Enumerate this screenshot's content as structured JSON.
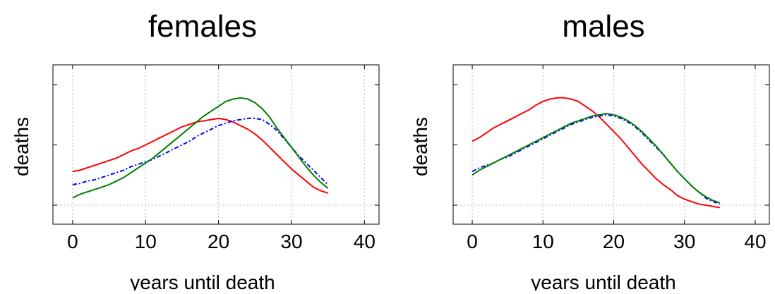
{
  "chart_data": [
    {
      "type": "line",
      "title": "females",
      "xlabel": "years until death",
      "ylabel": "deaths",
      "xlim": [
        -2.7,
        42
      ],
      "ylim": [
        0,
        1
      ],
      "x_ticks": [
        "0",
        "10",
        "20",
        "30",
        "40"
      ],
      "grid": true,
      "series": [
        {
          "color": "#ff0000",
          "style": "solid",
          "x": [
            0,
            1,
            2,
            3,
            4,
            5,
            6,
            7,
            8,
            9,
            10,
            11,
            12,
            13,
            14,
            15,
            16,
            17,
            18,
            19,
            20,
            21,
            22,
            23,
            24,
            25,
            26,
            27,
            28,
            29,
            30,
            31,
            32,
            33,
            34,
            35
          ],
          "values": [
            0.28,
            0.29,
            0.31,
            0.33,
            0.35,
            0.37,
            0.39,
            0.42,
            0.45,
            0.47,
            0.5,
            0.53,
            0.56,
            0.59,
            0.62,
            0.65,
            0.67,
            0.69,
            0.7,
            0.71,
            0.72,
            0.71,
            0.69,
            0.66,
            0.63,
            0.59,
            0.54,
            0.48,
            0.42,
            0.36,
            0.3,
            0.25,
            0.2,
            0.15,
            0.12,
            0.1
          ]
        },
        {
          "color": "#0000ff",
          "style": "dashed",
          "x": [
            0,
            1,
            2,
            3,
            4,
            5,
            6,
            7,
            8,
            9,
            10,
            11,
            12,
            13,
            14,
            15,
            16,
            17,
            18,
            19,
            20,
            21,
            22,
            23,
            24,
            25,
            26,
            27,
            28,
            29,
            30,
            31,
            32,
            33,
            34,
            35
          ],
          "values": [
            0.17,
            0.18,
            0.2,
            0.21,
            0.23,
            0.25,
            0.27,
            0.29,
            0.32,
            0.34,
            0.36,
            0.38,
            0.41,
            0.44,
            0.47,
            0.5,
            0.53,
            0.57,
            0.6,
            0.63,
            0.66,
            0.68,
            0.7,
            0.71,
            0.72,
            0.72,
            0.71,
            0.67,
            0.62,
            0.55,
            0.48,
            0.41,
            0.35,
            0.29,
            0.23,
            0.17
          ]
        },
        {
          "color": "#008000",
          "style": "solid",
          "x": [
            0,
            1,
            2,
            3,
            4,
            5,
            6,
            7,
            8,
            9,
            10,
            11,
            12,
            13,
            14,
            15,
            16,
            17,
            18,
            19,
            20,
            21,
            22,
            23,
            24,
            25,
            26,
            27,
            28,
            29,
            30,
            31,
            32,
            33,
            34,
            35
          ],
          "values": [
            0.06,
            0.09,
            0.11,
            0.13,
            0.15,
            0.17,
            0.2,
            0.23,
            0.27,
            0.31,
            0.35,
            0.39,
            0.44,
            0.49,
            0.54,
            0.59,
            0.64,
            0.69,
            0.74,
            0.78,
            0.82,
            0.86,
            0.88,
            0.89,
            0.88,
            0.85,
            0.8,
            0.73,
            0.64,
            0.56,
            0.48,
            0.4,
            0.32,
            0.25,
            0.19,
            0.14
          ]
        }
      ]
    },
    {
      "type": "line",
      "title": "males",
      "xlabel": "years until death",
      "ylabel": "deaths",
      "xlim": [
        -2.7,
        42
      ],
      "ylim": [
        0,
        1
      ],
      "x_ticks": [
        "0",
        "10",
        "20",
        "30",
        "40"
      ],
      "grid": true,
      "series": [
        {
          "color": "#ff0000",
          "style": "solid",
          "x": [
            0,
            1,
            2,
            3,
            4,
            5,
            6,
            7,
            8,
            9,
            10,
            11,
            12,
            13,
            14,
            15,
            16,
            17,
            18,
            19,
            20,
            21,
            22,
            23,
            24,
            25,
            26,
            27,
            28,
            29,
            30,
            31,
            32,
            33,
            34,
            35
          ],
          "values": [
            0.53,
            0.56,
            0.6,
            0.64,
            0.67,
            0.7,
            0.73,
            0.76,
            0.79,
            0.83,
            0.86,
            0.88,
            0.89,
            0.89,
            0.88,
            0.86,
            0.82,
            0.78,
            0.73,
            0.67,
            0.61,
            0.55,
            0.48,
            0.41,
            0.34,
            0.28,
            0.22,
            0.17,
            0.13,
            0.08,
            0.05,
            0.03,
            0.01,
            0.0,
            -0.01,
            -0.02
          ]
        },
        {
          "color": "#0000ff",
          "style": "dashed",
          "x": [
            0,
            1,
            2,
            3,
            4,
            5,
            6,
            7,
            8,
            9,
            10,
            11,
            12,
            13,
            14,
            15,
            16,
            17,
            18,
            19,
            20,
            21,
            22,
            23,
            24,
            25,
            26,
            27,
            28,
            29,
            30,
            31,
            32,
            33,
            34,
            35
          ],
          "values": [
            0.28,
            0.31,
            0.33,
            0.35,
            0.38,
            0.4,
            0.43,
            0.46,
            0.49,
            0.52,
            0.55,
            0.58,
            0.61,
            0.64,
            0.67,
            0.69,
            0.71,
            0.73,
            0.74,
            0.75,
            0.74,
            0.72,
            0.69,
            0.65,
            0.6,
            0.54,
            0.48,
            0.42,
            0.35,
            0.28,
            0.22,
            0.16,
            0.11,
            0.06,
            0.03,
            0.01
          ]
        },
        {
          "color": "#008000",
          "style": "solid",
          "x": [
            0,
            1,
            2,
            3,
            4,
            5,
            6,
            7,
            8,
            9,
            10,
            11,
            12,
            13,
            14,
            15,
            16,
            17,
            18,
            19,
            20,
            21,
            22,
            23,
            24,
            25,
            26,
            27,
            28,
            29,
            30,
            31,
            32,
            33,
            34,
            35
          ],
          "values": [
            0.25,
            0.29,
            0.32,
            0.35,
            0.38,
            0.41,
            0.44,
            0.47,
            0.5,
            0.53,
            0.56,
            0.59,
            0.62,
            0.65,
            0.68,
            0.7,
            0.72,
            0.74,
            0.75,
            0.76,
            0.75,
            0.73,
            0.7,
            0.66,
            0.61,
            0.55,
            0.49,
            0.42,
            0.35,
            0.28,
            0.22,
            0.16,
            0.11,
            0.07,
            0.04,
            0.02
          ]
        }
      ]
    }
  ]
}
